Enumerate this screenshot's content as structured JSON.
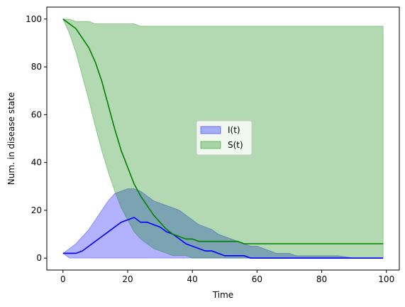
{
  "chart_data": {
    "type": "area",
    "xlabel": "Time",
    "ylabel": "Num. in disease state",
    "xlim": [
      -5,
      104
    ],
    "ylim": [
      -5,
      105
    ],
    "xticks": [
      0,
      20,
      40,
      60,
      80,
      100
    ],
    "yticks": [
      0,
      20,
      40,
      60,
      80,
      100
    ],
    "grid": false,
    "legend_position": "center",
    "series": [
      {
        "name": "I(t)",
        "color": "#0000ff",
        "fill_color": "#0000ff",
        "fill_opacity": 0.3,
        "x": [
          0,
          2,
          4,
          6,
          8,
          10,
          12,
          14,
          16,
          18,
          20,
          22,
          24,
          26,
          28,
          30,
          32,
          34,
          36,
          38,
          40,
          42,
          44,
          46,
          48,
          50,
          52,
          54,
          56,
          58,
          60,
          62,
          64,
          66,
          68,
          70,
          72,
          74,
          76,
          78,
          80,
          85,
          90,
          95,
          99
        ],
        "mean": [
          2,
          2,
          2,
          3,
          5,
          7,
          9,
          11,
          13,
          15,
          16,
          17,
          15,
          15,
          14,
          13,
          11,
          10,
          8,
          6,
          5,
          4,
          3,
          3,
          2,
          1,
          1,
          1,
          1,
          0,
          0,
          0,
          0,
          0,
          0,
          0,
          0,
          0,
          0,
          0,
          0,
          0,
          0,
          0,
          0
        ],
        "lower": [
          2,
          0,
          0,
          0,
          0,
          0,
          0,
          0,
          0,
          0,
          0,
          0,
          0,
          0,
          0,
          0,
          0,
          0,
          0,
          0,
          0,
          0,
          0,
          0,
          0,
          0,
          0,
          0,
          0,
          0,
          0,
          0,
          0,
          0,
          0,
          0,
          0,
          0,
          0,
          0,
          0,
          0,
          0,
          0,
          0
        ],
        "upper": [
          2,
          4,
          6,
          9,
          12,
          16,
          20,
          24,
          27,
          28,
          29,
          29,
          28,
          26,
          24,
          23,
          22,
          21,
          20,
          18,
          16,
          14,
          13,
          12,
          10,
          9,
          8,
          7,
          6,
          5,
          5,
          4,
          3,
          2,
          2,
          2,
          1,
          1,
          1,
          1,
          1,
          1,
          0,
          0,
          0
        ]
      },
      {
        "name": "S(t)",
        "color": "#008000",
        "fill_color": "#008000",
        "fill_opacity": 0.3,
        "x": [
          0,
          2,
          4,
          6,
          8,
          10,
          12,
          14,
          16,
          18,
          20,
          22,
          24,
          26,
          28,
          30,
          32,
          34,
          36,
          38,
          40,
          42,
          44,
          46,
          48,
          50,
          52,
          54,
          56,
          58,
          60,
          62,
          64,
          66,
          68,
          70,
          72,
          74,
          76,
          78,
          80,
          85,
          90,
          95,
          99
        ],
        "mean": [
          100,
          98,
          96,
          92,
          88,
          82,
          74,
          64,
          54,
          45,
          38,
          31,
          26,
          22,
          18,
          15,
          12,
          10,
          9,
          8,
          8,
          7,
          7,
          7,
          7,
          7,
          7,
          7,
          6,
          6,
          6,
          6,
          6,
          6,
          6,
          6,
          6,
          6,
          6,
          6,
          6,
          6,
          6,
          6,
          6
        ],
        "lower": [
          100,
          94,
          86,
          76,
          66,
          55,
          45,
          36,
          28,
          21,
          16,
          11,
          8,
          6,
          4,
          3,
          2,
          1,
          1,
          1,
          0,
          0,
          0,
          0,
          0,
          0,
          0,
          0,
          0,
          0,
          0,
          0,
          0,
          0,
          0,
          0,
          0,
          0,
          0,
          0,
          0,
          0,
          0,
          0,
          0
        ],
        "upper": [
          100,
          100,
          99,
          99,
          99,
          98,
          98,
          98,
          98,
          98,
          98,
          98,
          97,
          97,
          97,
          97,
          97,
          97,
          97,
          97,
          97,
          97,
          97,
          97,
          97,
          97,
          97,
          97,
          97,
          97,
          97,
          97,
          97,
          97,
          97,
          97,
          97,
          97,
          97,
          97,
          97,
          97,
          97,
          97,
          97
        ]
      }
    ]
  }
}
